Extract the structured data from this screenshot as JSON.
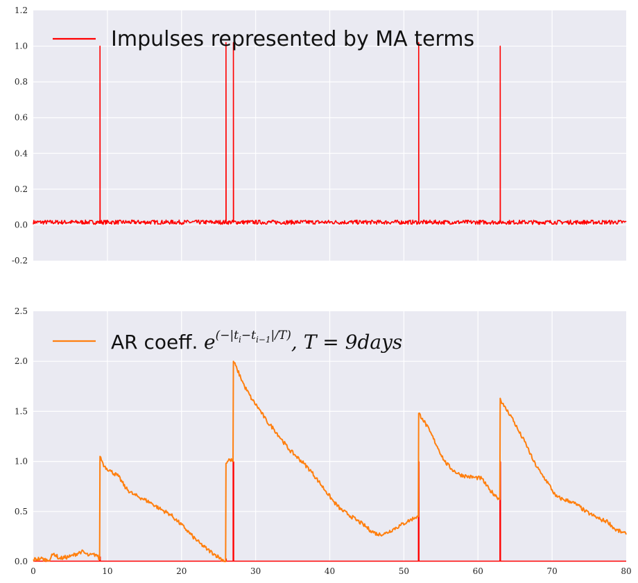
{
  "chart_data": [
    {
      "type": "line",
      "title": "",
      "xlabel": "",
      "ylabel": "",
      "xlim": [
        0,
        80
      ],
      "ylim": [
        -0.2,
        1.2
      ],
      "grid": true,
      "legend_placement": "top-left",
      "x_ticks": [],
      "y_ticks": [
        "-0.2",
        "0.0",
        "0.2",
        "0.4",
        "0.6",
        "0.8",
        "1.0",
        "1.2"
      ],
      "colors": {
        "background": "#EAEAF2",
        "grid": "#FFFFFF",
        "line": "#FF0000"
      },
      "series": [
        {
          "name": "Impulses represented by MA terms",
          "color": "#FF0000",
          "baseline": 0.015,
          "noise_amplitude": 0.012,
          "impulses": [
            {
              "x": 9.0,
              "y": 1.0
            },
            {
              "x": 26.0,
              "y": 1.02
            },
            {
              "x": 27.0,
              "y": 1.02
            },
            {
              "x": 52.0,
              "y": 1.02
            },
            {
              "x": 63.0,
              "y": 1.0
            }
          ]
        }
      ]
    },
    {
      "type": "line",
      "title": "",
      "xlabel": "",
      "ylabel": "",
      "xlim": [
        0,
        80
      ],
      "ylim": [
        0,
        2.5
      ],
      "grid": true,
      "legend_placement": "top-left",
      "x_ticks": [
        "0",
        "10",
        "20",
        "30",
        "40",
        "50",
        "60",
        "70",
        "80"
      ],
      "y_ticks": [
        "0.0",
        "0.5",
        "1.0",
        "1.5",
        "2.0",
        "2.5"
      ],
      "colors": {
        "background": "#EAEAF2",
        "grid": "#FFFFFF",
        "impulse": "#FF0000",
        "line": "#FF7F0E"
      },
      "impulse_series": {
        "color": "#FF0000",
        "points": [
          {
            "x": 9.0,
            "y": 0.05
          },
          {
            "x": 26.0,
            "y": 0.03
          },
          {
            "x": 27.0,
            "y": 1.0
          },
          {
            "x": 52.0,
            "y": 1.0
          },
          {
            "x": 63.0,
            "y": 1.0
          }
        ]
      },
      "series": [
        {
          "name": "AR coeff.",
          "legend_math": "e^(−|t_i−t_i−1|/T), T = 9days",
          "color": "#FF7F0E",
          "points": [
            [
              0,
              0.02
            ],
            [
              1,
              0.03
            ],
            [
              2,
              0.01
            ],
            [
              2.8,
              0.08
            ],
            [
              3.5,
              0.03
            ],
            [
              5,
              0.05
            ],
            [
              6.5,
              0.1
            ],
            [
              7.5,
              0.06
            ],
            [
              8.5,
              0.07
            ],
            [
              8.95,
              0.02
            ],
            [
              9.0,
              1.05
            ],
            [
              9.6,
              0.95
            ],
            [
              10.5,
              0.9
            ],
            [
              11.5,
              0.85
            ],
            [
              12.5,
              0.73
            ],
            [
              13.5,
              0.67
            ],
            [
              14.7,
              0.63
            ],
            [
              16,
              0.58
            ],
            [
              17,
              0.53
            ],
            [
              18.5,
              0.47
            ],
            [
              19.5,
              0.4
            ],
            [
              20.5,
              0.33
            ],
            [
              21.5,
              0.25
            ],
            [
              22.5,
              0.18
            ],
            [
              23.5,
              0.12
            ],
            [
              24.5,
              0.07
            ],
            [
              25.5,
              0.02
            ],
            [
              25.95,
              0.0
            ],
            [
              26.0,
              0.98
            ],
            [
              26.5,
              1.02
            ],
            [
              26.95,
              1.0
            ],
            [
              27.0,
              2.0
            ],
            [
              27.5,
              1.92
            ],
            [
              28.5,
              1.75
            ],
            [
              29.5,
              1.62
            ],
            [
              30.5,
              1.52
            ],
            [
              31.5,
              1.4
            ],
            [
              32.5,
              1.32
            ],
            [
              33.5,
              1.22
            ],
            [
              34.5,
              1.12
            ],
            [
              35.5,
              1.05
            ],
            [
              36.5,
              0.98
            ],
            [
              37.5,
              0.9
            ],
            [
              38.5,
              0.8
            ],
            [
              39.5,
              0.7
            ],
            [
              40.5,
              0.6
            ],
            [
              41.5,
              0.52
            ],
            [
              42.5,
              0.47
            ],
            [
              43.5,
              0.42
            ],
            [
              44.5,
              0.37
            ],
            [
              45.5,
              0.31
            ],
            [
              46.5,
              0.27
            ],
            [
              47.5,
              0.28
            ],
            [
              48.5,
              0.32
            ],
            [
              49.5,
              0.36
            ],
            [
              50.5,
              0.4
            ],
            [
              51.5,
              0.44
            ],
            [
              51.95,
              0.45
            ],
            [
              52.0,
              1.48
            ],
            [
              52.5,
              1.43
            ],
            [
              53.5,
              1.3
            ],
            [
              54.5,
              1.15
            ],
            [
              55.5,
              1.0
            ],
            [
              56.5,
              0.92
            ],
            [
              57.5,
              0.87
            ],
            [
              58.5,
              0.85
            ],
            [
              59.5,
              0.84
            ],
            [
              60.5,
              0.83
            ],
            [
              61.5,
              0.72
            ],
            [
              62.5,
              0.65
            ],
            [
              62.95,
              0.62
            ],
            [
              63.0,
              1.63
            ],
            [
              63.5,
              1.55
            ],
            [
              64.5,
              1.45
            ],
            [
              65.5,
              1.3
            ],
            [
              66.5,
              1.17
            ],
            [
              67.5,
              1.0
            ],
            [
              68.5,
              0.88
            ],
            [
              69.5,
              0.78
            ],
            [
              70.5,
              0.65
            ],
            [
              71.5,
              0.62
            ],
            [
              72.5,
              0.6
            ],
            [
              73.5,
              0.56
            ],
            [
              74.5,
              0.5
            ],
            [
              75.5,
              0.46
            ],
            [
              76.5,
              0.42
            ],
            [
              77.5,
              0.4
            ],
            [
              78.5,
              0.32
            ],
            [
              79.5,
              0.29
            ],
            [
              80,
              0.27
            ]
          ]
        }
      ]
    }
  ]
}
